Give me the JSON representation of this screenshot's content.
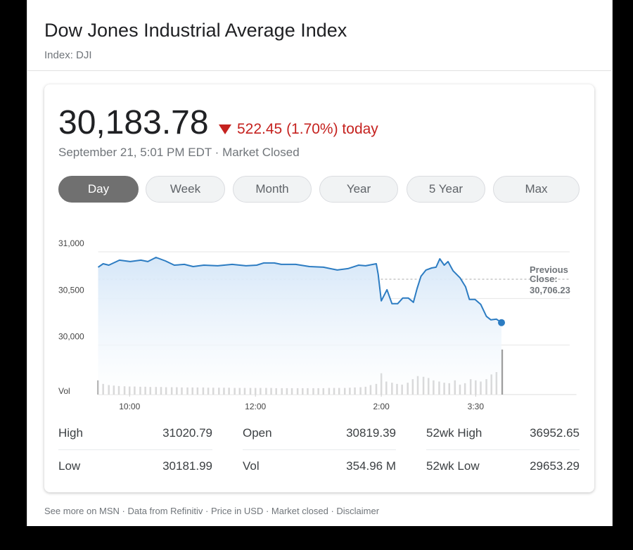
{
  "header": {
    "title": "Dow Jones Industrial Average Index",
    "subtitle": "Index: DJI"
  },
  "quote": {
    "price": "30,183.78",
    "change": "522.45 (1.70%) today",
    "timestamp": "September 21, 5:01 PM EDT · Market Closed"
  },
  "ranges": [
    "Day",
    "Week",
    "Month",
    "Year",
    "5 Year",
    "Max"
  ],
  "selected_range": "Day",
  "chart_data": {
    "type": "line",
    "color": "#2c7cc2",
    "grid": true,
    "xlim": [
      9.5,
      17.1
    ],
    "xticks": [
      {
        "value": 10,
        "label": "10:00"
      },
      {
        "value": 12,
        "label": "12:00"
      },
      {
        "value": 14,
        "label": "2:00"
      },
      {
        "value": 15.5,
        "label": "3:30"
      }
    ],
    "ylim": [
      29470,
      31000
    ],
    "yticks": [
      {
        "value": 30000,
        "label": "30,000"
      },
      {
        "value": 30500,
        "label": "30,500"
      },
      {
        "value": 31000,
        "label": "31,000"
      }
    ],
    "x": [
      9.5,
      9.58,
      9.67,
      9.84,
      10.01,
      10.18,
      10.29,
      10.42,
      10.57,
      10.71,
      10.87,
      11.01,
      11.18,
      11.4,
      11.63,
      11.85,
      12.02,
      12.13,
      12.3,
      12.41,
      12.64,
      12.86,
      13.08,
      13.3,
      13.47,
      13.64,
      13.75,
      13.92,
      13.95,
      14,
      14.09,
      14.17,
      14.26,
      14.34,
      14.43,
      14.51,
      14.57,
      14.63,
      14.71,
      14.8,
      14.87,
      14.93,
      15,
      15.06,
      15.14,
      15.25,
      15.34,
      15.4,
      15.49,
      15.58,
      15.67,
      15.74,
      15.83,
      15.91
    ],
    "values": [
      30835,
      30872,
      30857,
      30910,
      30895,
      30910,
      30895,
      30940,
      30902,
      30857,
      30865,
      30842,
      30857,
      30850,
      30865,
      30850,
      30857,
      30880,
      30880,
      30865,
      30865,
      30842,
      30835,
      30805,
      30820,
      30857,
      30850,
      30872,
      30759,
      30474,
      30594,
      30444,
      30444,
      30504,
      30504,
      30459,
      30609,
      30737,
      30805,
      30827,
      30835,
      30925,
      30857,
      30895,
      30797,
      30722,
      30624,
      30489,
      30489,
      30436,
      30308,
      30271,
      30278,
      30241
    ],
    "previous_close": {
      "label": "Previous Close:",
      "value": 30706.23,
      "value_label": "30,706.23"
    },
    "volume": {
      "label": "Vol",
      "color": "#9e9e9e",
      "x": [
        9.5,
        9.58,
        9.67,
        9.75,
        9.83,
        9.92,
        10,
        10.08,
        10.17,
        10.25,
        10.33,
        10.42,
        10.5,
        10.58,
        10.67,
        10.75,
        10.83,
        10.92,
        11,
        11.08,
        11.17,
        11.25,
        11.33,
        11.42,
        11.5,
        11.58,
        11.67,
        11.75,
        11.83,
        11.92,
        12,
        12.08,
        12.17,
        12.25,
        12.33,
        12.42,
        12.5,
        12.58,
        12.67,
        12.75,
        12.83,
        12.92,
        13,
        13.08,
        13.17,
        13.25,
        13.33,
        13.42,
        13.5,
        13.58,
        13.67,
        13.75,
        13.83,
        13.92,
        14,
        14.08,
        14.17,
        14.25,
        14.33,
        14.42,
        14.5,
        14.58,
        14.67,
        14.75,
        14.83,
        14.92,
        15,
        15.08,
        15.17,
        15.25,
        15.33,
        15.42,
        15.5,
        15.58,
        15.67,
        15.75,
        15.83,
        15.92
      ],
      "values": [
        6,
        4.5,
        4,
        3.8,
        3.6,
        3.5,
        3.4,
        3.4,
        3.3,
        3.3,
        3.2,
        3.2,
        3.2,
        3.1,
        3.1,
        3.1,
        3,
        3,
        3,
        3,
        3,
        2.9,
        2.9,
        2.9,
        2.9,
        2.9,
        2.8,
        2.8,
        2.8,
        2.8,
        2.8,
        2.8,
        2.8,
        2.8,
        2.7,
        2.7,
        2.7,
        2.7,
        2.7,
        2.7,
        2.7,
        2.7,
        2.7,
        2.7,
        2.8,
        2.8,
        2.8,
        2.8,
        2.9,
        3,
        3.1,
        3.3,
        4,
        4.5,
        9,
        5.5,
        5,
        4.5,
        4.2,
        5,
        6.5,
        7.8,
        7.5,
        7,
        6,
        5.5,
        5,
        4.8,
        6,
        4.2,
        4.8,
        6.5,
        6,
        5.5,
        6.5,
        8.5,
        9.5,
        19
      ]
    }
  },
  "stats": [
    [
      {
        "label": "High",
        "value": "31020.79"
      },
      {
        "label": "Open",
        "value": "30819.39"
      },
      {
        "label": "52wk High",
        "value": "36952.65"
      }
    ],
    [
      {
        "label": "Low",
        "value": "30181.99"
      },
      {
        "label": "Vol",
        "value": "354.96 M"
      },
      {
        "label": "52wk Low",
        "value": "29653.29"
      }
    ]
  ],
  "footer": "See more on MSN · Data from Refinitiv · Price in USD · Market closed · Disclaimer"
}
